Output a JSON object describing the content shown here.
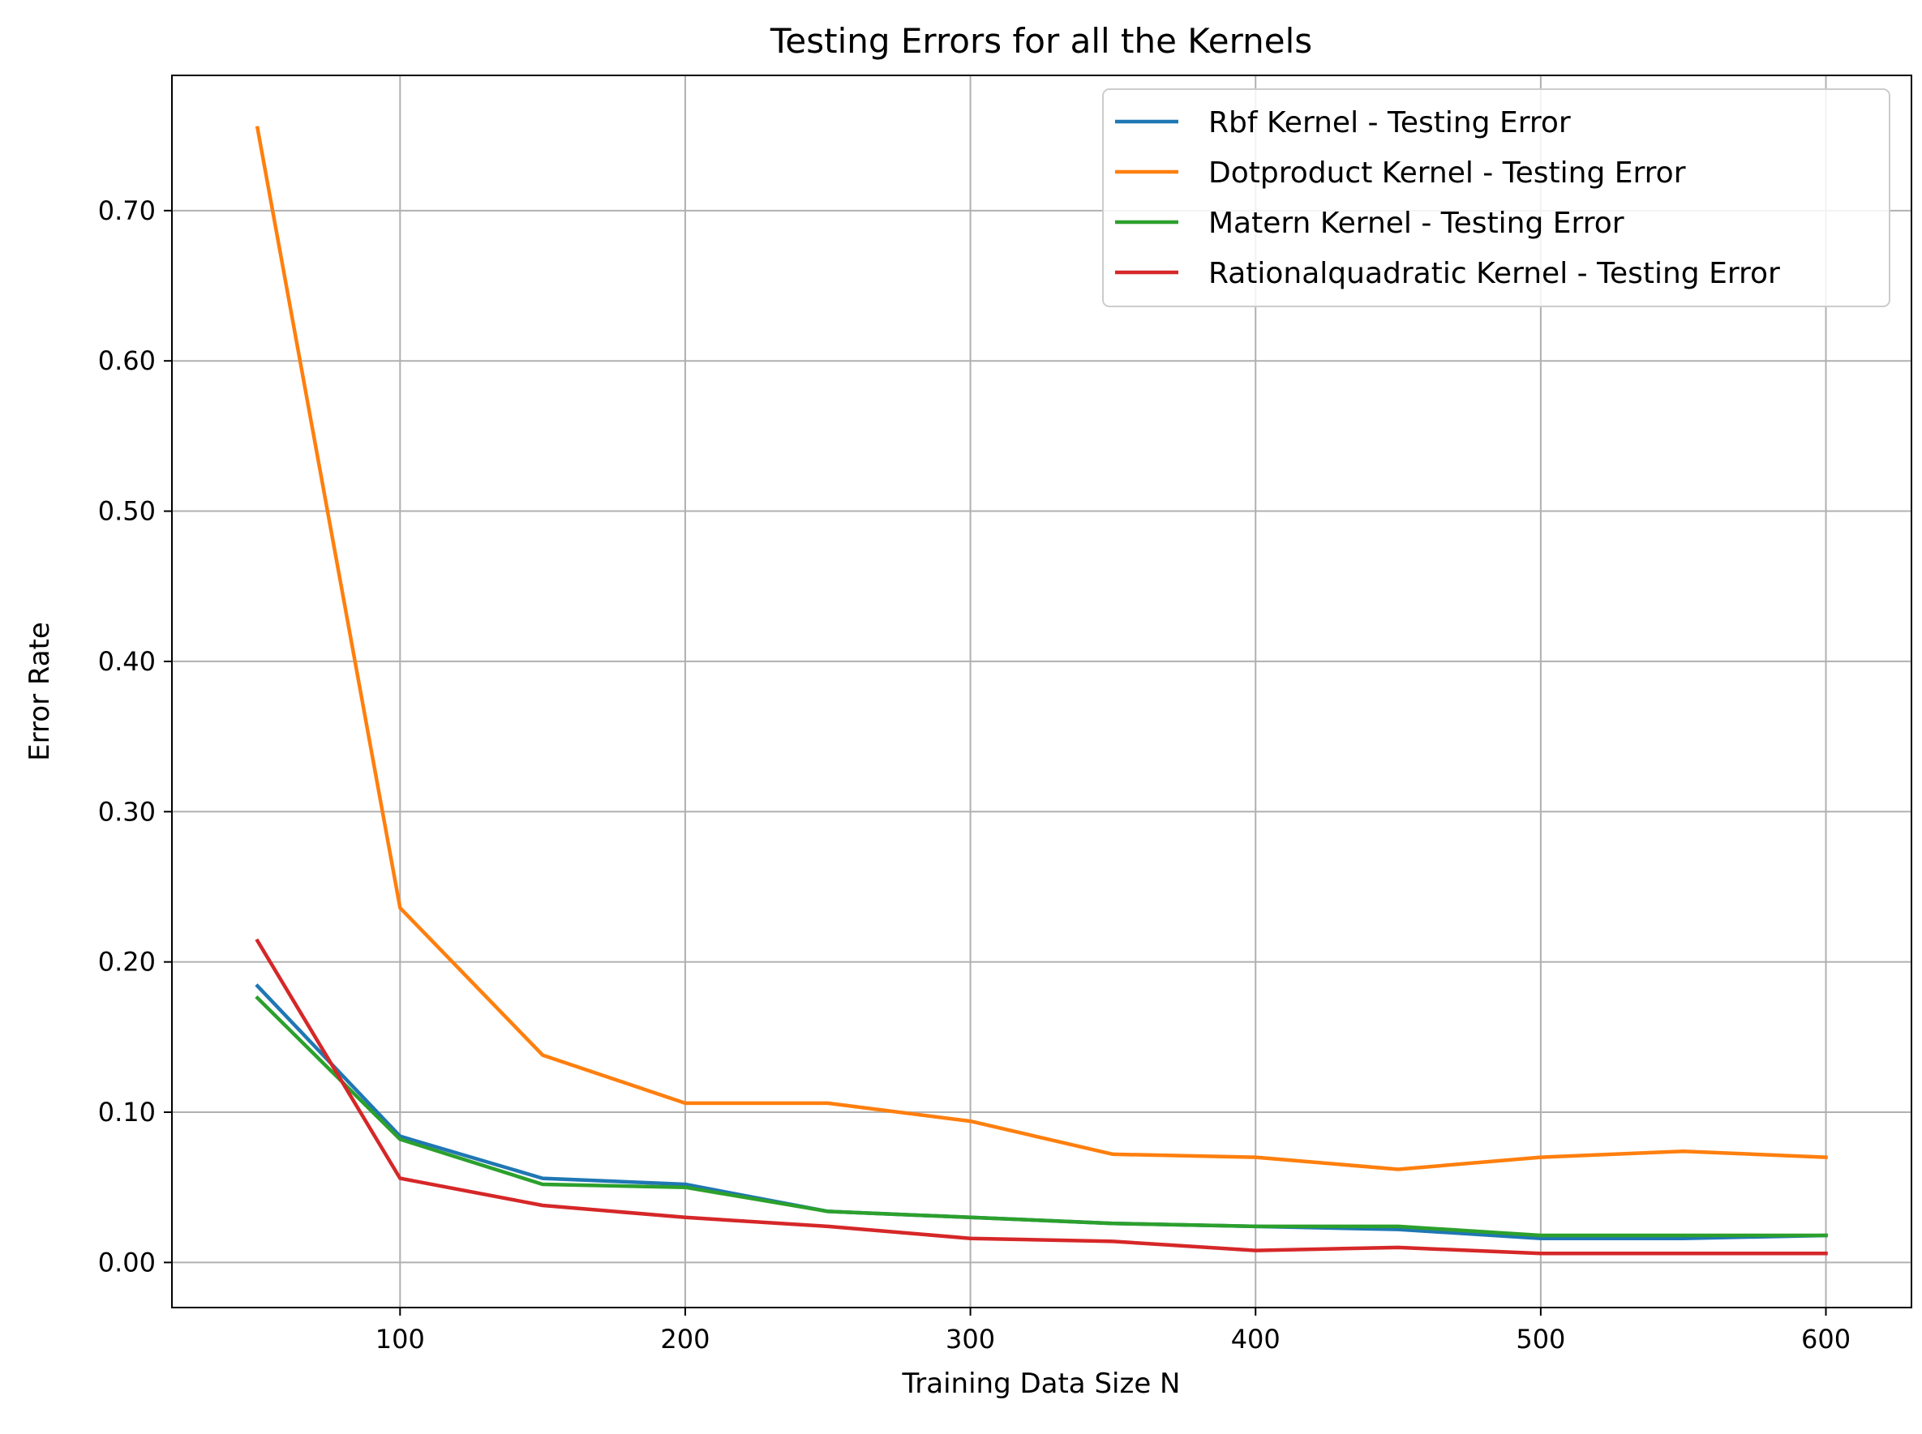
{
  "chart_data": {
    "type": "line",
    "title": "Testing Errors for all the Kernels",
    "xlabel": "Training Data Size N",
    "ylabel": "Error Rate",
    "xlim": [
      20,
      630
    ],
    "ylim": [
      -0.03,
      0.79
    ],
    "x_ticks": [
      100,
      200,
      300,
      400,
      500,
      600
    ],
    "y_ticks": [
      0.0,
      0.1,
      0.2,
      0.3,
      0.4,
      0.5,
      0.6,
      0.7
    ],
    "y_tick_labels": [
      "0.00",
      "0.10",
      "0.20",
      "0.30",
      "0.40",
      "0.50",
      "0.60",
      "0.70"
    ],
    "grid": true,
    "legend_position": "top-right",
    "x": [
      50,
      100,
      150,
      200,
      250,
      300,
      350,
      400,
      450,
      500,
      550,
      600
    ],
    "series": [
      {
        "name": "Rbf Kernel - Testing Error",
        "color": "#1f77b4",
        "values": [
          0.184,
          0.084,
          0.056,
          0.052,
          0.034,
          0.03,
          0.026,
          0.024,
          0.022,
          0.016,
          0.016,
          0.018
        ]
      },
      {
        "name": "Dotproduct Kernel - Testing Error",
        "color": "#ff7f0e",
        "values": [
          0.755,
          0.236,
          0.138,
          0.106,
          0.106,
          0.094,
          0.072,
          0.07,
          0.062,
          0.07,
          0.074,
          0.07
        ]
      },
      {
        "name": "Matern Kernel - Testing Error",
        "color": "#2ca02c",
        "values": [
          0.176,
          0.082,
          0.052,
          0.05,
          0.034,
          0.03,
          0.026,
          0.024,
          0.024,
          0.018,
          0.018,
          0.018
        ]
      },
      {
        "name": "Rationalquadratic Kernel - Testing Error",
        "color": "#d62728",
        "values": [
          0.214,
          0.056,
          0.038,
          0.03,
          0.024,
          0.016,
          0.014,
          0.008,
          0.01,
          0.006,
          0.006,
          0.006
        ]
      }
    ]
  }
}
